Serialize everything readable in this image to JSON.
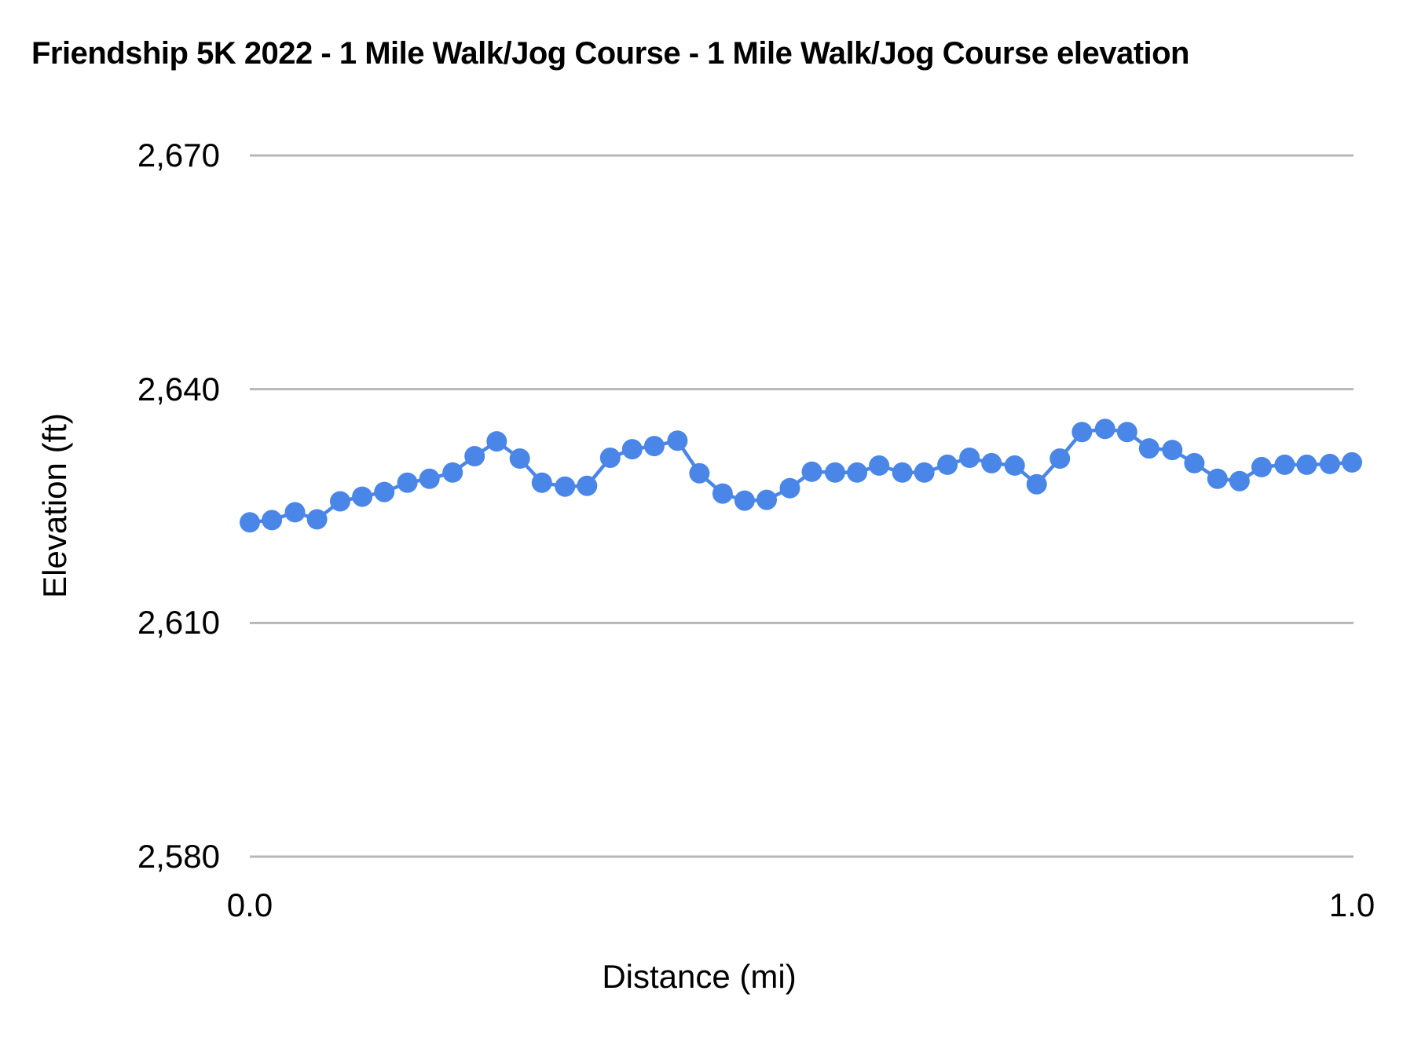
{
  "title": "Friendship 5K 2022 - 1 Mile Walk/Jog Course - 1 Mile Walk/Jog Course elevation",
  "colors": {
    "series": "#4a86e8",
    "gridline": "#b7b7b7",
    "text": "#000000",
    "background": "#ffffff"
  },
  "chart_data": {
    "type": "line",
    "title": "Friendship 5K 2022 - 1 Mile Walk/Jog Course - 1 Mile Walk/Jog Course elevation",
    "xlabel": "Distance (mi)",
    "ylabel": "Elevation (ft)",
    "series_name": "1 Mile Walk/Jog Course elevation",
    "marker": "circle",
    "grid": "horizontal",
    "legend": "none",
    "xlim": [
      0.0,
      1.0
    ],
    "ylim": [
      2580,
      2670
    ],
    "y_ticks": [
      2670,
      2640,
      2610,
      2580
    ],
    "y_tick_labels": [
      "2,670",
      "2,640",
      "2,610",
      "2,580"
    ],
    "x_ticks": [
      0.0,
      1.0
    ],
    "x_tick_labels": [
      "0.0",
      "1.0"
    ],
    "x": [
      0.0,
      0.02,
      0.041,
      0.061,
      0.082,
      0.102,
      0.122,
      0.143,
      0.163,
      0.184,
      0.204,
      0.224,
      0.245,
      0.265,
      0.286,
      0.306,
      0.327,
      0.347,
      0.367,
      0.388,
      0.408,
      0.429,
      0.449,
      0.469,
      0.49,
      0.51,
      0.531,
      0.551,
      0.571,
      0.592,
      0.612,
      0.633,
      0.653,
      0.673,
      0.694,
      0.714,
      0.735,
      0.755,
      0.776,
      0.796,
      0.816,
      0.837,
      0.857,
      0.878,
      0.898,
      0.918,
      0.939,
      0.959,
      0.98,
      1.0
    ],
    "y": [
      2622.9,
      2623.2,
      2624.2,
      2623.3,
      2625.6,
      2626.2,
      2626.8,
      2628.0,
      2628.5,
      2629.3,
      2631.4,
      2633.3,
      2631.1,
      2628.0,
      2627.5,
      2627.6,
      2631.2,
      2632.3,
      2632.7,
      2633.4,
      2629.2,
      2626.6,
      2625.7,
      2625.8,
      2627.3,
      2629.4,
      2629.3,
      2629.3,
      2630.2,
      2629.3,
      2629.3,
      2630.3,
      2631.2,
      2630.5,
      2630.2,
      2627.8,
      2631.1,
      2634.5,
      2634.9,
      2634.5,
      2632.4,
      2632.2,
      2630.5,
      2628.5,
      2628.2,
      2630.0,
      2630.3,
      2630.3,
      2630.4,
      2630.6
    ]
  }
}
